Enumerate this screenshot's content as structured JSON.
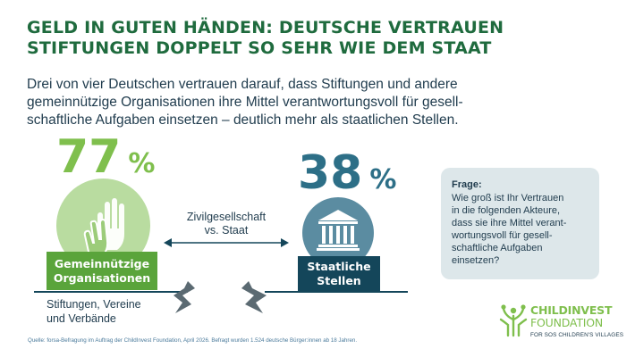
{
  "title": "GELD IN GUTEN HÄNDEN: DEUTSCHE VERTRAUEN\nSTIFTUNGEN DOPPELT SO SEHR WIE DEM STAAT",
  "subtitle": "Drei von vier Deutschen vertrauen darauf, dass Stiftungen und andere\ngemeinnützige Organisationen ihre Mittel verantwortungsvoll für gesell-\nschaftliche Aufgaben einsetzen – deutlich mehr als staatlichen Stellen.",
  "left": {
    "percent_value": "77",
    "percent_sign": "%",
    "label": "Gemeinnützige\nOrganisationen",
    "caption": "Stiftungen, Vereine\nund Verbände",
    "icon": "hands-icon"
  },
  "right": {
    "percent_value": "38",
    "percent_sign": "%",
    "label": "Staatliche\nStellen",
    "icon": "government-building-icon"
  },
  "comparison_label": "Zivilgesellschaft\nvs. Staat",
  "question": {
    "title": "Frage:",
    "text": "Wie groß ist Ihr Vertrauen\nin die folgenden Akteure,\ndass sie ihre Mittel verant-\nwortungsvoll für gesell-\nschaftliche Aufgaben\neinsetzen?"
  },
  "source": "Quelle: forsa-Befragung im Auftrag der ChildInvest Foundation, April 2026. Befragt wurden 1.524 deutsche Bürger:innen ab 18 Jahren.",
  "logo": {
    "line1": "CHILDINVEST",
    "line2": "FOUNDATION",
    "line3": "FOR SOS CHILDREN'S VILLAGES"
  },
  "colors": {
    "title_green": "#1f6b3e",
    "accent_green": "#7fbf4d",
    "label_green": "#5aa43b",
    "accent_blue": "#2d6f87",
    "dark_blue": "#14465a",
    "question_bg": "#dde7ea"
  }
}
